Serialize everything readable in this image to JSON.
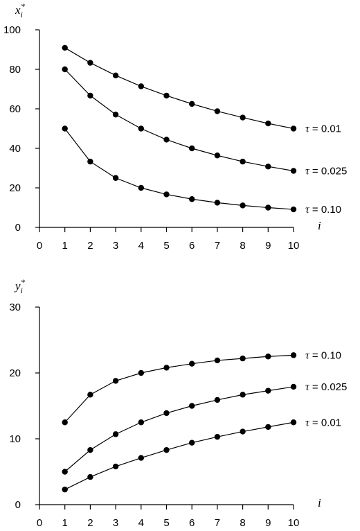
{
  "chart_data": [
    {
      "type": "line",
      "ylabel": {
        "base": "x",
        "sub": "i",
        "sup": "*"
      },
      "xlabel": "i",
      "xlim": [
        0,
        10
      ],
      "ylim": [
        0,
        100
      ],
      "xticks": [
        0,
        1,
        2,
        3,
        4,
        5,
        6,
        7,
        8,
        9,
        10
      ],
      "yticks": [
        0,
        20,
        40,
        60,
        80,
        100
      ],
      "x": [
        1,
        2,
        3,
        4,
        5,
        6,
        7,
        8,
        9,
        10
      ],
      "series": [
        {
          "name": "τ = 0.01",
          "label_prefix": "τ",
          "label_value": " = 0.01",
          "values": [
            90.9,
            83.3,
            76.9,
            71.4,
            66.7,
            62.5,
            58.8,
            55.6,
            52.6,
            50.0
          ]
        },
        {
          "name": "τ = 0.025",
          "label_prefix": "τ",
          "label_value": " = 0.025",
          "values": [
            80.0,
            66.7,
            57.1,
            50.0,
            44.4,
            40.0,
            36.4,
            33.3,
            30.8,
            28.6
          ]
        },
        {
          "name": "τ = 0.10",
          "label_prefix": "τ",
          "label_value": " = 0.10",
          "values": [
            50.0,
            33.3,
            25.0,
            20.0,
            16.7,
            14.3,
            12.5,
            11.1,
            10.0,
            9.1
          ]
        }
      ]
    },
    {
      "type": "line",
      "ylabel": {
        "base": "y",
        "sub": "i",
        "sup": "*"
      },
      "xlabel": "i",
      "xlim": [
        0,
        10
      ],
      "ylim": [
        0,
        30
      ],
      "xticks": [
        0,
        1,
        2,
        3,
        4,
        5,
        6,
        7,
        8,
        9,
        10
      ],
      "yticks": [
        0,
        10,
        20,
        30
      ],
      "x": [
        1,
        2,
        3,
        4,
        5,
        6,
        7,
        8,
        9,
        10
      ],
      "series": [
        {
          "name": "τ = 0.10",
          "label_prefix": "τ",
          "label_value": " = 0.10",
          "values": [
            12.5,
            16.7,
            18.8,
            20.0,
            20.8,
            21.4,
            21.9,
            22.2,
            22.5,
            22.7
          ]
        },
        {
          "name": "τ = 0.025",
          "label_prefix": "τ",
          "label_value": " = 0.025",
          "values": [
            5.0,
            8.3,
            10.7,
            12.5,
            13.9,
            15.0,
            15.9,
            16.7,
            17.3,
            17.9
          ]
        },
        {
          "name": "τ = 0.01",
          "label_prefix": "τ",
          "label_value": " = 0.01",
          "values": [
            2.3,
            4.2,
            5.8,
            7.1,
            8.3,
            9.4,
            10.3,
            11.1,
            11.8,
            12.5
          ]
        }
      ]
    }
  ]
}
